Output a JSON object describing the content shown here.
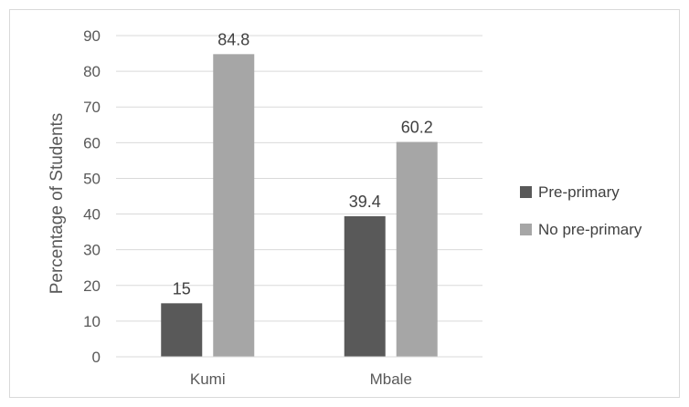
{
  "chart_data": {
    "type": "bar",
    "categories": [
      "Kumi",
      "Mbale"
    ],
    "series": [
      {
        "name": "Pre-primary",
        "values": [
          15,
          39.4
        ],
        "color": "#595959"
      },
      {
        "name": "No pre-primary",
        "values": [
          84.8,
          60.2
        ],
        "color": "#a6a6a6"
      }
    ],
    "ylabel": "Percentage of Students",
    "xlabel": "",
    "title": "",
    "ylim": [
      0,
      90
    ],
    "yticks": [
      0,
      10,
      20,
      30,
      40,
      50,
      60,
      70,
      80,
      90
    ],
    "grid": true,
    "legend_position": "right",
    "data_labels": true
  }
}
